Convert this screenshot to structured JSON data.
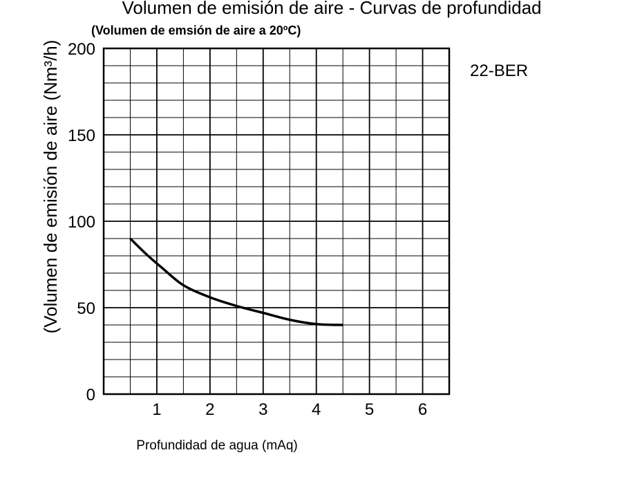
{
  "chart_data": {
    "type": "line",
    "title": "Volumen de emisión de aire - Curvas de profundidad",
    "subtitle": "(Volumen de emsión de aire a 20ºC)",
    "xlabel": "Profundidad de agua (mAq)",
    "ylabel": "(Volumen de emisión de aire (Nm³/h)",
    "model_label": "22-BER",
    "xlim": [
      0,
      6.5
    ],
    "ylim": [
      0,
      200
    ],
    "x_ticks": [
      1,
      2,
      3,
      4,
      5,
      6
    ],
    "y_ticks": [
      0,
      50,
      100,
      150,
      200
    ],
    "grid": true,
    "series": [
      {
        "x": [
          0.5,
          0.8,
          1.1,
          1.5,
          2.0,
          2.5,
          3.0,
          3.5,
          4.0,
          4.5
        ],
        "y": [
          90,
          81,
          73,
          63,
          56,
          51,
          47,
          43,
          40.5,
          40
        ]
      }
    ]
  }
}
